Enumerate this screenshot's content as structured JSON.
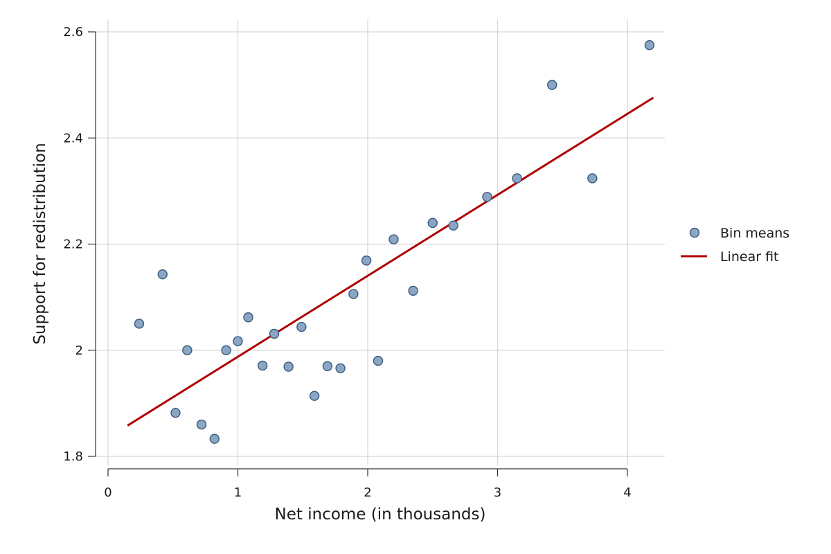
{
  "chart_data": {
    "type": "scatter",
    "title": "",
    "xlabel": "Net income (in thousands)",
    "ylabel": "Support for redistribution",
    "xlim": [
      0,
      4.3
    ],
    "ylim": [
      1.8,
      2.6
    ],
    "x_ticks": [
      0,
      1,
      2,
      3,
      4
    ],
    "x_tick_labels": [
      "0",
      "1",
      "2",
      "3",
      "4"
    ],
    "y_ticks": [
      1.8,
      2.0,
      2.2,
      2.4,
      2.6
    ],
    "y_tick_labels": [
      "1.8",
      "2",
      "2.2",
      "2.4",
      "2.6"
    ],
    "grid": true,
    "legend_position": "right",
    "series": [
      {
        "name": "Bin means",
        "kind": "scatter",
        "color": "#8aa6c4",
        "edge_color": "#3a5a7c",
        "points": [
          {
            "x": 0.24,
            "y": 2.05
          },
          {
            "x": 0.42,
            "y": 2.143
          },
          {
            "x": 0.52,
            "y": 1.882
          },
          {
            "x": 0.61,
            "y": 2.0
          },
          {
            "x": 0.72,
            "y": 1.86
          },
          {
            "x": 0.82,
            "y": 1.833
          },
          {
            "x": 0.91,
            "y": 2.0
          },
          {
            "x": 1.0,
            "y": 2.017
          },
          {
            "x": 1.08,
            "y": 2.062
          },
          {
            "x": 1.19,
            "y": 1.971
          },
          {
            "x": 1.28,
            "y": 2.031
          },
          {
            "x": 1.39,
            "y": 1.969
          },
          {
            "x": 1.49,
            "y": 2.044
          },
          {
            "x": 1.59,
            "y": 1.914
          },
          {
            "x": 1.69,
            "y": 1.97
          },
          {
            "x": 1.79,
            "y": 1.966
          },
          {
            "x": 1.89,
            "y": 2.106
          },
          {
            "x": 1.99,
            "y": 2.169
          },
          {
            "x": 2.08,
            "y": 1.98
          },
          {
            "x": 2.2,
            "y": 2.209
          },
          {
            "x": 2.35,
            "y": 2.112
          },
          {
            "x": 2.5,
            "y": 2.24
          },
          {
            "x": 2.66,
            "y": 2.235
          },
          {
            "x": 2.92,
            "y": 2.289
          },
          {
            "x": 3.15,
            "y": 2.324
          },
          {
            "x": 3.42,
            "y": 2.5
          },
          {
            "x": 3.73,
            "y": 2.324
          },
          {
            "x": 4.17,
            "y": 2.575
          }
        ]
      },
      {
        "name": "Linear fit",
        "kind": "line",
        "color": "#b00000",
        "points": [
          {
            "x": 0.15,
            "y": 1.858
          },
          {
            "x": 4.2,
            "y": 2.476
          }
        ]
      }
    ]
  }
}
